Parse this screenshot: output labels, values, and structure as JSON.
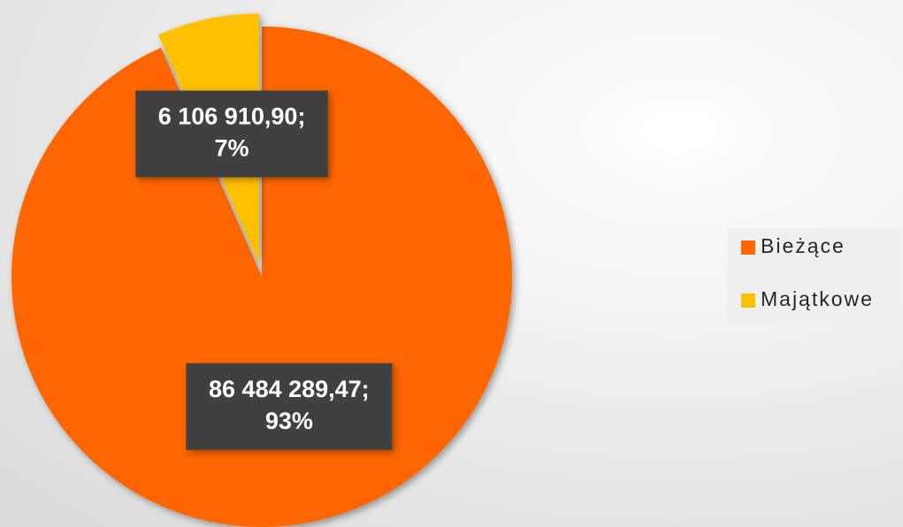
{
  "chart_data": {
    "type": "pie",
    "categories": [
      "Bieżące",
      "Majątkowe"
    ],
    "values": [
      86484289.47,
      6106910.9
    ],
    "value_labels": [
      [
        "86 484 289,47;",
        "93%"
      ],
      [
        "6 106 910,90;",
        "7%"
      ]
    ],
    "colors": [
      "#ff6600",
      "#ffc000"
    ],
    "exploded": [
      false,
      true
    ],
    "legend": "right"
  }
}
